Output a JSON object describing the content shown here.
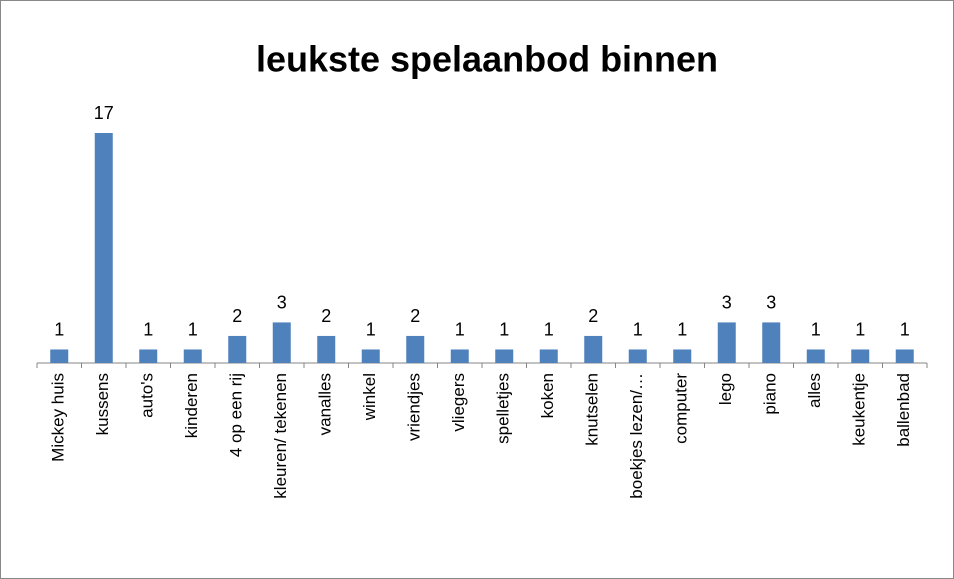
{
  "chart_data": {
    "type": "bar",
    "title": "leukste spelaanbod binnen",
    "categories": [
      "Mickey huis",
      "kussens",
      "auto's",
      "kinderen",
      "4 op een rij",
      "kleuren/ tekenen",
      "vanalles",
      "winkel",
      "vriendjes",
      "vliegers",
      "spelletjes",
      "koken",
      "knutselen",
      "boekjes lezen/…",
      "computer",
      "lego",
      "piano",
      "alles",
      "keukentje",
      "ballenbad"
    ],
    "values": [
      1,
      17,
      1,
      1,
      2,
      3,
      2,
      1,
      2,
      1,
      1,
      1,
      2,
      1,
      1,
      3,
      3,
      1,
      1,
      1
    ],
    "color": "#4f81bd"
  }
}
